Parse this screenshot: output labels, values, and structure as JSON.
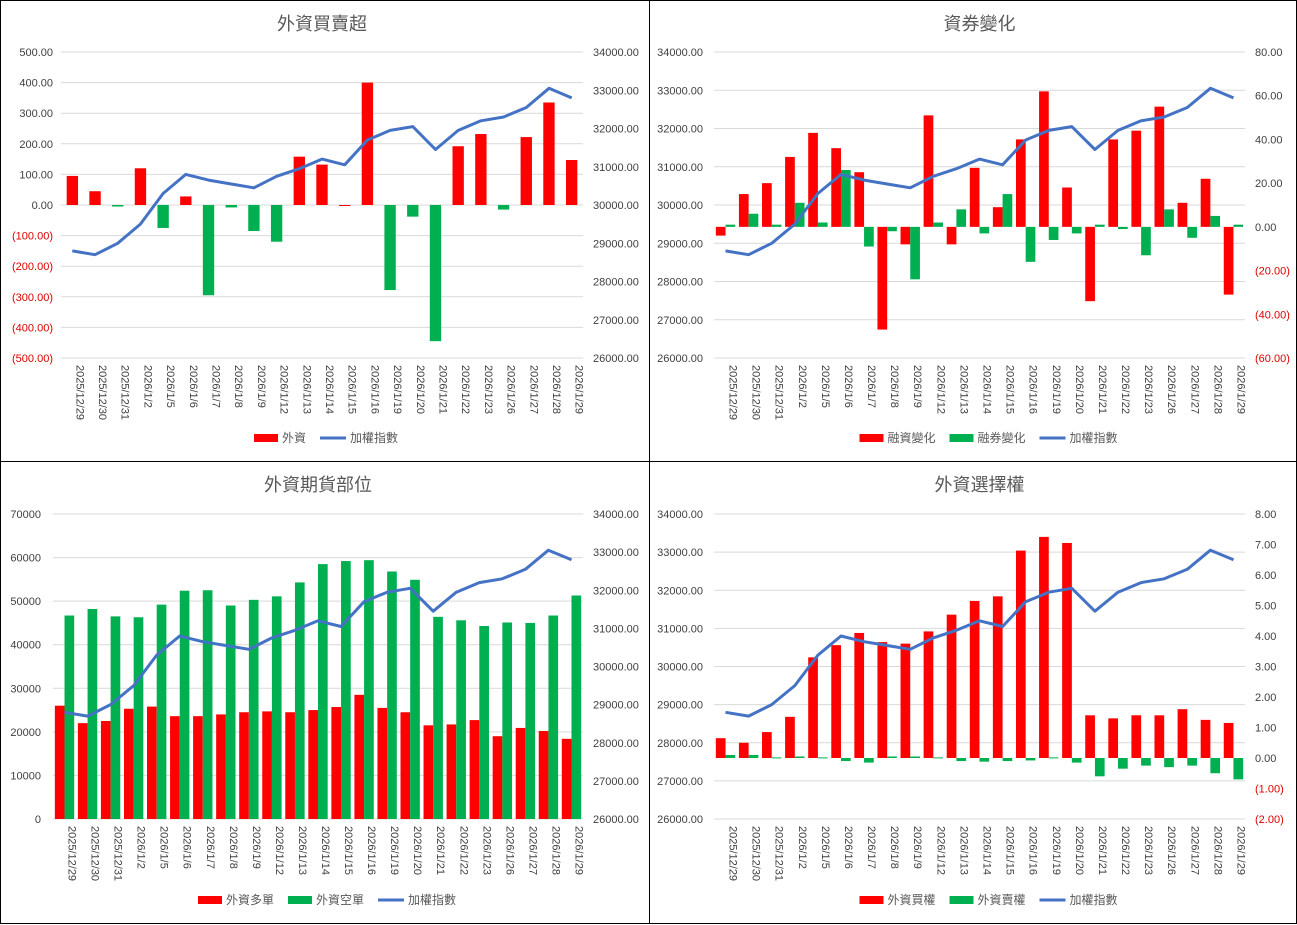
{
  "dates": [
    "2025/12/29",
    "2025/12/30",
    "2025/12/31",
    "2026/1/2",
    "2026/1/5",
    "2026/1/6",
    "2026/1/7",
    "2026/1/8",
    "2026/1/9",
    "2026/1/12",
    "2026/1/13",
    "2026/1/14",
    "2026/1/15",
    "2026/1/16",
    "2026/1/19",
    "2026/1/20",
    "2026/1/21",
    "2026/1/22",
    "2026/1/23",
    "2026/1/26",
    "2026/1/27",
    "2026/1/28",
    "2026/1/29"
  ],
  "index_values": [
    28800,
    28700,
    29000,
    29500,
    30300,
    30800,
    30650,
    30550,
    30450,
    30750,
    30950,
    31200,
    31050,
    31700,
    31950,
    32050,
    31450,
    31950,
    32200,
    32300,
    32550,
    33050,
    32800
  ],
  "colors": {
    "red": "#ff0000",
    "green": "#00b050",
    "blue": "#4472c4",
    "grid": "#d9d9d9",
    "neg": "#e00000"
  },
  "chart_data": [
    {
      "id": "p1",
      "type": "bar",
      "title": "外資買賣超",
      "left_axis": {
        "min": -500,
        "max": 500,
        "step": 100,
        "labels": [
          "500.00",
          "400.00",
          "300.00",
          "200.00",
          "100.00",
          "0.00",
          "(100.00)",
          "(200.00)",
          "(300.00)",
          "(400.00)",
          "(500.00)"
        ]
      },
      "right_axis": {
        "min": 26000,
        "max": 34000,
        "step": 1000,
        "labels": [
          "34000.00",
          "33000.00",
          "32000.00",
          "31000.00",
          "30000.00",
          "29000.00",
          "28000.00",
          "27000.00",
          "26000.00"
        ]
      },
      "series": [
        {
          "name": "外資",
          "kind": "bar",
          "sign_color": true,
          "values": [
            95,
            45,
            -5,
            120,
            -75,
            28,
            -295,
            -8,
            -85,
            -120,
            158,
            132,
            0,
            400,
            -278,
            -38,
            -445,
            192,
            232,
            -15,
            222,
            335,
            147
          ]
        },
        {
          "name": "加權指數",
          "kind": "line",
          "axis": "right",
          "use_index": true
        }
      ],
      "legend": [
        {
          "label": "外資",
          "swatch": "red"
        },
        {
          "label": "加權指數",
          "swatch": "blue"
        }
      ]
    },
    {
      "id": "p2",
      "type": "bar",
      "title": "資券變化",
      "left_axis": {
        "min": 26000,
        "max": 34000,
        "step": 1000,
        "labels": [
          "34000.00",
          "33000.00",
          "32000.00",
          "31000.00",
          "30000.00",
          "29000.00",
          "28000.00",
          "27000.00",
          "26000.00"
        ]
      },
      "right_axis": {
        "min": -60,
        "max": 80,
        "step": 20,
        "labels": [
          "80.00",
          "60.00",
          "40.00",
          "20.00",
          "0.00",
          "(20.00)",
          "(40.00)",
          "(60.00)"
        ]
      },
      "series": [
        {
          "name": "融資變化",
          "kind": "bar",
          "axis": "right",
          "color": "red",
          "values": [
            -4,
            15,
            20,
            32,
            43,
            36,
            25,
            -47,
            -8,
            51,
            -8,
            27,
            9,
            40,
            62,
            18,
            -34,
            40,
            44,
            55,
            11,
            22,
            -31
          ]
        },
        {
          "name": "融券變化",
          "kind": "bar",
          "axis": "right",
          "color": "green",
          "values": [
            1,
            6,
            1,
            11,
            2,
            26,
            -9,
            -2,
            -24,
            2,
            8,
            -3,
            15,
            -16,
            -6,
            -3,
            1,
            -1,
            -13,
            8,
            -5,
            5,
            1
          ]
        },
        {
          "name": "加權指數",
          "kind": "line",
          "axis": "left",
          "use_index": true
        }
      ],
      "legend": [
        {
          "label": "融資變化",
          "swatch": "red"
        },
        {
          "label": "融券變化",
          "swatch": "green"
        },
        {
          "label": "加權指數",
          "swatch": "blue"
        }
      ]
    },
    {
      "id": "p3",
      "type": "bar",
      "title": "外資期貨部位",
      "left_axis": {
        "min": 0,
        "max": 70000,
        "step": 10000,
        "labels": [
          "70000",
          "60000",
          "50000",
          "40000",
          "30000",
          "20000",
          "10000",
          "0"
        ]
      },
      "right_axis": {
        "min": 26000,
        "max": 34000,
        "step": 1000,
        "labels": [
          "34000.00",
          "33000.00",
          "32000.00",
          "31000.00",
          "30000.00",
          "29000.00",
          "28000.00",
          "27000.00",
          "26000.00"
        ]
      },
      "series": [
        {
          "name": "外資多單",
          "kind": "bar",
          "axis": "left",
          "color": "red",
          "values": [
            26000,
            22000,
            22500,
            25300,
            25800,
            23600,
            23600,
            24000,
            24500,
            24700,
            24500,
            25000,
            25700,
            28500,
            25500,
            24500,
            21500,
            21700,
            22700,
            19000,
            20900,
            20200,
            18400
          ]
        },
        {
          "name": "外資空單",
          "kind": "bar",
          "axis": "left",
          "color": "green",
          "values": [
            46700,
            48200,
            46500,
            46300,
            49200,
            52400,
            52500,
            49000,
            50300,
            51100,
            54300,
            58500,
            59200,
            59400,
            56800,
            54900,
            46400,
            45600,
            44300,
            45100,
            45000,
            46700,
            51300
          ]
        },
        {
          "name": "加權指數",
          "kind": "line",
          "axis": "right",
          "use_index": true
        }
      ],
      "legend": [
        {
          "label": "外資多單",
          "swatch": "red"
        },
        {
          "label": "外資空單",
          "swatch": "green"
        },
        {
          "label": "加權指數",
          "swatch": "blue"
        }
      ]
    },
    {
      "id": "p4",
      "type": "bar",
      "title": "外資選擇權",
      "left_axis": {
        "min": 26000,
        "max": 34000,
        "step": 1000,
        "labels": [
          "34000.00",
          "33000.00",
          "32000.00",
          "31000.00",
          "30000.00",
          "29000.00",
          "28000.00",
          "27000.00",
          "26000.00"
        ]
      },
      "right_axis": {
        "min": -2,
        "max": 8,
        "step": 1,
        "labels": [
          "8.00",
          "7.00",
          "6.00",
          "5.00",
          "4.00",
          "3.00",
          "2.00",
          "1.00",
          "0.00",
          "(1.00)",
          "(2.00)"
        ]
      },
      "series": [
        {
          "name": "外資買權",
          "kind": "bar",
          "axis": "right",
          "color": "red",
          "values": [
            0.65,
            0.5,
            0.85,
            1.35,
            3.3,
            3.7,
            4.1,
            3.8,
            3.75,
            4.15,
            4.7,
            5.15,
            5.3,
            6.8,
            7.25,
            7.05,
            1.4,
            1.3,
            1.4,
            1.4,
            1.6,
            1.25,
            1.15
          ]
        },
        {
          "name": "外資賣權",
          "kind": "bar",
          "axis": "right",
          "color": "green",
          "values": [
            0.1,
            0.1,
            0.02,
            0.05,
            0.02,
            -0.1,
            -0.15,
            0.05,
            0.05,
            0.02,
            -0.1,
            -0.12,
            -0.1,
            -0.08,
            0.02,
            -0.15,
            -0.6,
            -0.35,
            -0.25,
            -0.3,
            -0.25,
            -0.5,
            -0.7
          ]
        },
        {
          "name": "加權指數",
          "kind": "line",
          "axis": "left",
          "use_index": true
        }
      ],
      "legend": [
        {
          "label": "外資買權",
          "swatch": "red"
        },
        {
          "label": "外資賣權",
          "swatch": "green"
        },
        {
          "label": "加權指數",
          "swatch": "blue"
        }
      ]
    }
  ]
}
